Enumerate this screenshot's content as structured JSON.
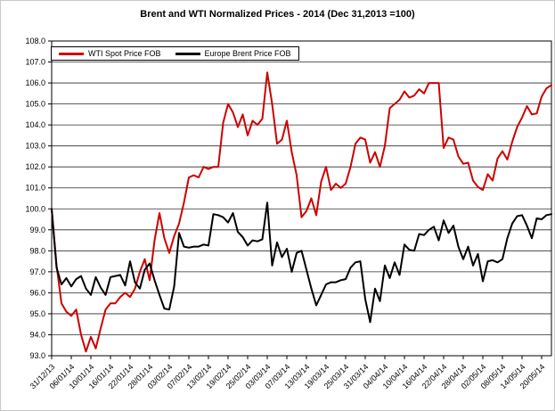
{
  "chart_data": {
    "type": "line",
    "title": "Brent and WTI Normalized Prices  - 2014 (Dec 31,2013 =100)",
    "xlabel": "",
    "ylabel": "",
    "ylim": [
      93.0,
      108.0
    ],
    "y_tick_labels": [
      "108.0",
      "107.0",
      "106.0",
      "105.0",
      "104.0",
      "103.0",
      "102.0",
      "101.0",
      "100.0",
      "99.0",
      "98.0",
      "97.0",
      "96.0",
      "95.0",
      "94.0",
      "93.0"
    ],
    "x_tick_labels": [
      "31/12/13",
      "06/01/14",
      "10/01/14",
      "16/01/14",
      "22/01/14",
      "28/01/14",
      "03/02/14",
      "07/02/14",
      "13/02/14",
      "19/02/14",
      "25/02/14",
      "03/03/14",
      "07/03/14",
      "13/03/14",
      "19/03/14",
      "25/03/14",
      "31/03/14",
      "04/04/14",
      "10/04/14",
      "16/04/14",
      "22/04/14",
      "28/04/14",
      "02/05/14",
      "08/05/14",
      "14/05/14",
      "20/05/14"
    ],
    "x_tick_every": 4,
    "grid": true,
    "legend_position": "top-left",
    "series": [
      {
        "name": "WTI Spot Price FOB",
        "color": "#CC0000",
        "values": [
          100.0,
          97.3,
          95.5,
          95.1,
          94.9,
          95.2,
          94.0,
          93.2,
          93.9,
          93.35,
          94.3,
          95.2,
          95.5,
          95.5,
          95.8,
          96.0,
          95.8,
          96.2,
          97.0,
          97.6,
          96.6,
          98.5,
          99.8,
          98.6,
          97.9,
          98.7,
          99.3,
          100.3,
          101.5,
          101.6,
          101.5,
          102.0,
          101.9,
          102.0,
          102.0,
          104.1,
          105.0,
          104.6,
          103.9,
          104.5,
          103.5,
          104.2,
          104.0,
          104.3,
          106.5,
          105.0,
          103.1,
          103.3,
          104.2,
          102.7,
          101.6,
          99.6,
          99.9,
          100.5,
          99.7,
          101.3,
          102.0,
          100.9,
          101.2,
          101.0,
          101.2,
          102.0,
          103.1,
          103.4,
          103.3,
          102.2,
          102.7,
          102.0,
          103.0,
          104.8,
          105.0,
          105.2,
          105.6,
          105.3,
          105.4,
          105.7,
          105.5,
          106.0,
          106.0,
          106.0,
          102.9,
          103.4,
          103.3,
          102.5,
          102.15,
          102.2,
          101.35,
          101.05,
          100.9,
          101.65,
          101.35,
          102.4,
          102.75,
          102.35,
          103.2,
          103.9,
          104.35,
          104.9,
          104.5,
          104.55,
          105.35,
          105.75,
          105.9
        ]
      },
      {
        "name": "Europe Brent Price FOB",
        "color": "#000000",
        "values": [
          100.0,
          97.2,
          96.4,
          96.7,
          96.3,
          96.65,
          96.8,
          96.2,
          95.9,
          96.75,
          96.25,
          95.9,
          96.75,
          96.8,
          96.85,
          96.35,
          97.5,
          96.5,
          96.2,
          97.1,
          97.4,
          96.6,
          95.9,
          95.25,
          95.2,
          96.3,
          98.85,
          98.2,
          98.15,
          98.2,
          98.2,
          98.3,
          98.25,
          99.75,
          99.7,
          99.6,
          99.35,
          99.8,
          98.9,
          98.65,
          98.25,
          98.5,
          98.45,
          98.55,
          100.3,
          97.3,
          98.4,
          97.7,
          98.1,
          97.0,
          97.9,
          98.0,
          97.1,
          96.2,
          95.4,
          95.9,
          96.4,
          96.5,
          96.5,
          96.6,
          96.65,
          97.2,
          97.45,
          97.5,
          95.7,
          94.6,
          96.2,
          95.6,
          97.3,
          96.7,
          97.45,
          96.85,
          98.3,
          98.05,
          98.0,
          98.8,
          98.75,
          99.0,
          99.15,
          98.5,
          99.45,
          98.85,
          99.2,
          98.2,
          97.6,
          98.2,
          97.3,
          97.85,
          96.55,
          97.5,
          97.55,
          97.45,
          97.6,
          98.6,
          99.3,
          99.65,
          99.7,
          99.2,
          98.6,
          99.55,
          99.5,
          99.7,
          99.75
        ]
      }
    ]
  },
  "colors": {
    "grid": "#2b2b2b",
    "axis": "#000000",
    "background": "#ffffff"
  }
}
